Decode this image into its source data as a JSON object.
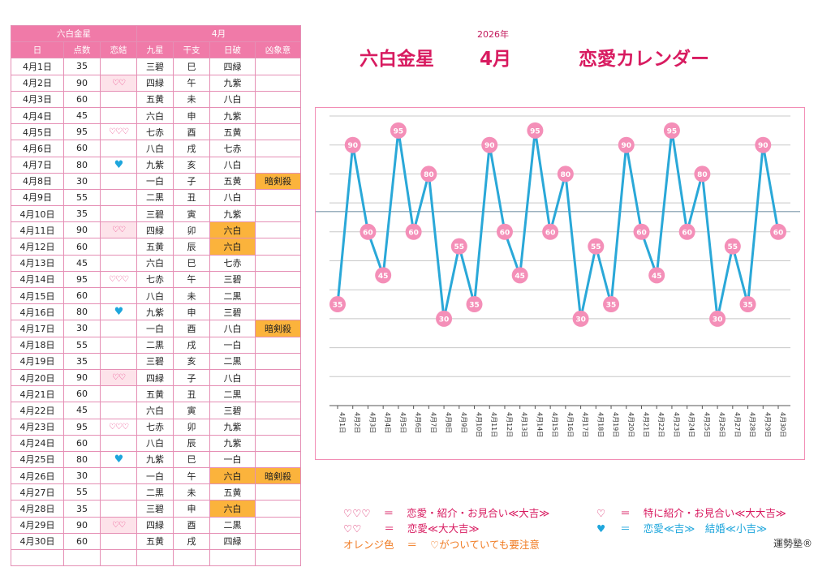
{
  "table": {
    "header_star": "六白金星",
    "header_month": "4月",
    "columns": [
      "日",
      "点数",
      "恋結",
      "九星",
      "干支",
      "日破",
      "凶象意"
    ],
    "rows": [
      {
        "date": "4月1日",
        "score": "35",
        "heart": "",
        "heart_type": "",
        "star": "三碧",
        "eto": "巳",
        "nippa": "四緑",
        "nippa_hl": false,
        "kyo": ""
      },
      {
        "date": "4月2日",
        "score": "90",
        "heart": "♡♡",
        "heart_type": "pink",
        "star": "四緑",
        "eto": "午",
        "nippa": "九紫",
        "nippa_hl": false,
        "kyo": ""
      },
      {
        "date": "4月3日",
        "score": "60",
        "heart": "",
        "heart_type": "",
        "star": "五黄",
        "eto": "未",
        "nippa": "八白",
        "nippa_hl": false,
        "kyo": ""
      },
      {
        "date": "4月4日",
        "score": "45",
        "heart": "",
        "heart_type": "",
        "star": "六白",
        "eto": "申",
        "nippa": "九紫",
        "nippa_hl": false,
        "kyo": ""
      },
      {
        "date": "4月5日",
        "score": "95",
        "heart": "♡♡♡",
        "heart_type": "red",
        "star": "七赤",
        "eto": "酉",
        "nippa": "五黄",
        "nippa_hl": false,
        "kyo": ""
      },
      {
        "date": "4月6日",
        "score": "60",
        "heart": "",
        "heart_type": "",
        "star": "八白",
        "eto": "戌",
        "nippa": "七赤",
        "nippa_hl": false,
        "kyo": ""
      },
      {
        "date": "4月7日",
        "score": "80",
        "heart": "♥",
        "heart_type": "blue",
        "star": "九紫",
        "eto": "亥",
        "nippa": "八白",
        "nippa_hl": false,
        "kyo": ""
      },
      {
        "date": "4月8日",
        "score": "30",
        "heart": "",
        "heart_type": "",
        "star": "一白",
        "eto": "子",
        "nippa": "五黄",
        "nippa_hl": false,
        "kyo": "暗剣殺"
      },
      {
        "date": "4月9日",
        "score": "55",
        "heart": "",
        "heart_type": "",
        "star": "二黒",
        "eto": "丑",
        "nippa": "八白",
        "nippa_hl": false,
        "kyo": ""
      },
      {
        "date": "4月10日",
        "score": "35",
        "heart": "",
        "heart_type": "",
        "star": "三碧",
        "eto": "寅",
        "nippa": "九紫",
        "nippa_hl": false,
        "kyo": ""
      },
      {
        "date": "4月11日",
        "score": "90",
        "heart": "♡♡",
        "heart_type": "pink",
        "star": "四緑",
        "eto": "卯",
        "nippa": "六白",
        "nippa_hl": true,
        "kyo": ""
      },
      {
        "date": "4月12日",
        "score": "60",
        "heart": "",
        "heart_type": "",
        "star": "五黄",
        "eto": "辰",
        "nippa": "六白",
        "nippa_hl": true,
        "kyo": ""
      },
      {
        "date": "4月13日",
        "score": "45",
        "heart": "",
        "heart_type": "",
        "star": "六白",
        "eto": "巳",
        "nippa": "七赤",
        "nippa_hl": false,
        "kyo": ""
      },
      {
        "date": "4月14日",
        "score": "95",
        "heart": "♡♡♡",
        "heart_type": "red",
        "star": "七赤",
        "eto": "午",
        "nippa": "三碧",
        "nippa_hl": false,
        "kyo": ""
      },
      {
        "date": "4月15日",
        "score": "60",
        "heart": "",
        "heart_type": "",
        "star": "八白",
        "eto": "未",
        "nippa": "二黒",
        "nippa_hl": false,
        "kyo": ""
      },
      {
        "date": "4月16日",
        "score": "80",
        "heart": "♥",
        "heart_type": "blue",
        "star": "九紫",
        "eto": "申",
        "nippa": "三碧",
        "nippa_hl": false,
        "kyo": ""
      },
      {
        "date": "4月17日",
        "score": "30",
        "heart": "",
        "heart_type": "",
        "star": "一白",
        "eto": "酉",
        "nippa": "八白",
        "nippa_hl": false,
        "kyo": "暗剣殺"
      },
      {
        "date": "4月18日",
        "score": "55",
        "heart": "",
        "heart_type": "",
        "star": "二黒",
        "eto": "戌",
        "nippa": "一白",
        "nippa_hl": false,
        "kyo": ""
      },
      {
        "date": "4月19日",
        "score": "35",
        "heart": "",
        "heart_type": "",
        "star": "三碧",
        "eto": "亥",
        "nippa": "二黒",
        "nippa_hl": false,
        "kyo": ""
      },
      {
        "date": "4月20日",
        "score": "90",
        "heart": "♡♡",
        "heart_type": "pink",
        "star": "四緑",
        "eto": "子",
        "nippa": "八白",
        "nippa_hl": false,
        "kyo": ""
      },
      {
        "date": "4月21日",
        "score": "60",
        "heart": "",
        "heart_type": "",
        "star": "五黄",
        "eto": "丑",
        "nippa": "二黒",
        "nippa_hl": false,
        "kyo": ""
      },
      {
        "date": "4月22日",
        "score": "45",
        "heart": "",
        "heart_type": "",
        "star": "六白",
        "eto": "寅",
        "nippa": "三碧",
        "nippa_hl": false,
        "kyo": ""
      },
      {
        "date": "4月23日",
        "score": "95",
        "heart": "♡♡♡",
        "heart_type": "red",
        "star": "七赤",
        "eto": "卯",
        "nippa": "九紫",
        "nippa_hl": false,
        "kyo": ""
      },
      {
        "date": "4月24日",
        "score": "60",
        "heart": "",
        "heart_type": "",
        "star": "八白",
        "eto": "辰",
        "nippa": "九紫",
        "nippa_hl": false,
        "kyo": ""
      },
      {
        "date": "4月25日",
        "score": "80",
        "heart": "♥",
        "heart_type": "blue",
        "star": "九紫",
        "eto": "巳",
        "nippa": "一白",
        "nippa_hl": false,
        "kyo": ""
      },
      {
        "date": "4月26日",
        "score": "30",
        "heart": "",
        "heart_type": "",
        "star": "一白",
        "eto": "午",
        "nippa": "六白",
        "nippa_hl": true,
        "kyo": "暗剣殺"
      },
      {
        "date": "4月27日",
        "score": "55",
        "heart": "",
        "heart_type": "",
        "star": "二黒",
        "eto": "未",
        "nippa": "五黄",
        "nippa_hl": false,
        "kyo": ""
      },
      {
        "date": "4月28日",
        "score": "35",
        "heart": "",
        "heart_type": "",
        "star": "三碧",
        "eto": "申",
        "nippa": "六白",
        "nippa_hl": true,
        "kyo": ""
      },
      {
        "date": "4月29日",
        "score": "90",
        "heart": "♡♡",
        "heart_type": "pink",
        "star": "四緑",
        "eto": "酉",
        "nippa": "二黒",
        "nippa_hl": false,
        "kyo": ""
      },
      {
        "date": "4月30日",
        "score": "60",
        "heart": "",
        "heart_type": "",
        "star": "五黄",
        "eto": "戌",
        "nippa": "四緑",
        "nippa_hl": false,
        "kyo": ""
      }
    ]
  },
  "header": {
    "year": "2026年",
    "star": "六白金星",
    "month": "4月",
    "subtitle": "恋愛カレンダー"
  },
  "chart_data": {
    "type": "line",
    "x": [
      "4月1日",
      "4月2日",
      "4月3日",
      "4月4日",
      "4月5日",
      "4月6日",
      "4月7日",
      "4月8日",
      "4月9日",
      "4月10日",
      "4月11日",
      "4月12日",
      "4月13日",
      "4月14日",
      "4月15日",
      "4月16日",
      "4月17日",
      "4月18日",
      "4月19日",
      "4月20日",
      "4月21日",
      "4月22日",
      "4月23日",
      "4月24日",
      "4月25日",
      "4月26日",
      "4月27日",
      "4月28日",
      "4月29日",
      "4月30日"
    ],
    "values": [
      35,
      90,
      60,
      45,
      95,
      60,
      80,
      30,
      55,
      35,
      90,
      60,
      45,
      95,
      60,
      80,
      30,
      55,
      35,
      90,
      60,
      45,
      95,
      60,
      80,
      30,
      55,
      35,
      90,
      60
    ],
    "ylim": [
      0,
      100
    ],
    "grid": true,
    "reference_line": 67,
    "line_color": "#2aa8d8",
    "marker_color": "#f48fb8"
  },
  "legend": {
    "l1_sym": "♡♡♡",
    "l1_eq": "＝",
    "l1_text": "恋愛・紹介・お見合い≪大吉≫",
    "l2_sym": "♡",
    "l2_eq": "＝",
    "l2_text": "特に紹介・お見合い≪大大吉≫",
    "l3_sym": "♡♡",
    "l3_eq": "＝",
    "l3_text": "恋愛≪大大吉≫",
    "l4_sym": "♥",
    "l4_eq": "＝",
    "l4_text": "恋愛≪吉≫　結婚≪小吉≫",
    "l5_sym": "オレンジ色",
    "l5_eq": "＝",
    "l5_text": "♡がついていても要注意"
  },
  "brand": "運勢塾®"
}
